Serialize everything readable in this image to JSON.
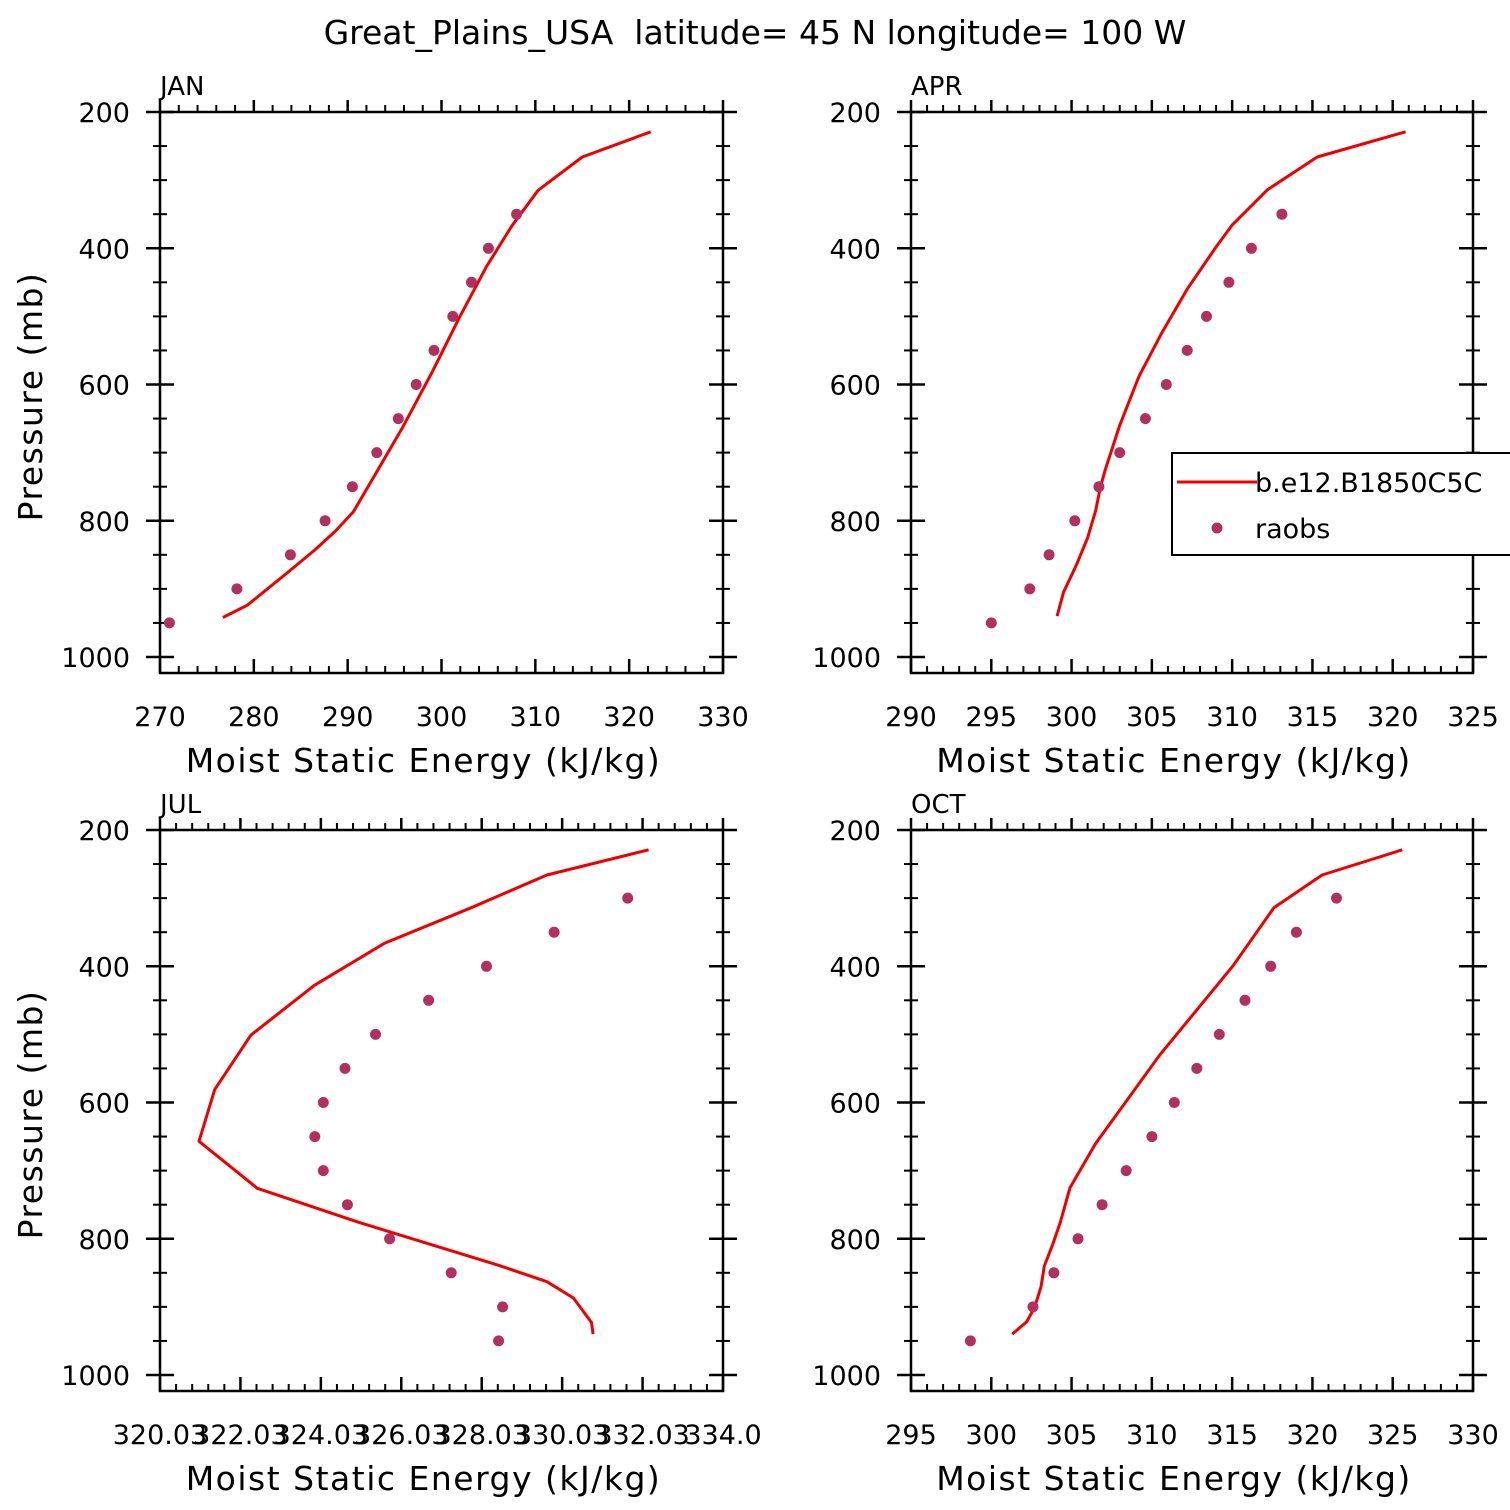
{
  "title": "Great_Plains_USA  latitude= 45 N longitude= 100 W",
  "colors": {
    "model": "#ee0000",
    "obs": "#b03060",
    "axis": "#000000"
  },
  "legend": {
    "model_label": "b.e12.B1850C5C",
    "obs_label": "raobs",
    "panel": "APR",
    "placement": "right-middle"
  },
  "chart_data": [
    {
      "type": "line",
      "panel_label": "JAN",
      "xlabel": "Moist Static Energy (kJ/kg)",
      "ylabel": "Pressure (mb)",
      "xlim": [
        270,
        330
      ],
      "ylim": [
        1000,
        200
      ],
      "xticks": [
        270,
        280,
        290,
        300,
        310,
        320,
        330
      ],
      "xtick_labels": [
        "270",
        "280",
        "290",
        "300",
        "310",
        "320",
        "330"
      ],
      "yticks": [
        200,
        400,
        600,
        800,
        1000
      ],
      "ytick_labels": [
        "200",
        "400",
        "600",
        "800",
        "1000"
      ],
      "series": [
        {
          "name": "b.e12.B1850C5C",
          "kind": "line",
          "x": [
            276.7,
            279.3,
            283.6,
            286.5,
            288.7,
            290.6,
            293.1,
            295.9,
            299.0,
            301.9,
            304.8,
            307.5,
            310.3,
            315.0,
            322.3
          ],
          "y": [
            942,
            924,
            876,
            843,
            815,
            787,
            728,
            662,
            582,
            502,
            427,
            367,
            315,
            266,
            229
          ]
        },
        {
          "name": "raobs",
          "kind": "scatter",
          "x": [
            271.0,
            278.2,
            283.9,
            287.6,
            290.5,
            293.1,
            295.4,
            297.3,
            299.2,
            301.2,
            303.2,
            305.0,
            308.0
          ],
          "y": [
            950,
            900,
            850,
            800,
            750,
            700,
            650,
            600,
            550,
            500,
            450,
            400,
            350
          ]
        }
      ]
    },
    {
      "type": "line",
      "panel_label": "APR",
      "xlabel": "Moist Static Energy (kJ/kg)",
      "ylabel": "",
      "xlim": [
        290,
        325
      ],
      "ylim": [
        1000,
        200
      ],
      "xticks": [
        290,
        295,
        300,
        305,
        310,
        315,
        320,
        325
      ],
      "xtick_labels": [
        "290",
        "295",
        "300",
        "305",
        "310",
        "315",
        "320",
        "325"
      ],
      "yticks": [
        200,
        400,
        600,
        800,
        1000
      ],
      "ytick_labels": [
        "200",
        "400",
        "600",
        "800",
        "1000"
      ],
      "series": [
        {
          "name": "b.e12.B1850C5C",
          "kind": "line",
          "x": [
            299.1,
            299.5,
            300.3,
            301.0,
            301.5,
            301.8,
            302.1,
            303.0,
            304.2,
            305.6,
            307.2,
            309.0,
            310.0,
            312.2,
            315.3,
            320.8
          ],
          "y": [
            940,
            905,
            865,
            825,
            785,
            750,
            725,
            660,
            588,
            525,
            460,
            398,
            366,
            314,
            266,
            229
          ]
        },
        {
          "name": "raobs",
          "kind": "scatter",
          "x": [
            295.0,
            297.4,
            298.6,
            300.2,
            301.7,
            303.0,
            304.6,
            305.9,
            307.2,
            308.4,
            309.8,
            311.2,
            313.1
          ],
          "y": [
            950,
            900,
            850,
            800,
            750,
            700,
            650,
            600,
            550,
            500,
            450,
            400,
            350
          ]
        }
      ]
    },
    {
      "type": "line",
      "panel_label": "JUL",
      "xlabel": "Moist Static Energy (kJ/kg)",
      "ylabel": "Pressure (mb)",
      "xlim": [
        320.03,
        334.03
      ],
      "ylim": [
        1000,
        200
      ],
      "xticks": [
        320.03,
        322.03,
        324.03,
        326.03,
        328.03,
        330.03,
        332.03,
        334.03
      ],
      "xtick_labels": [
        "320.03",
        "322.03",
        "324.03",
        "326.03",
        "328.03",
        "330.03",
        "332.03",
        "334.0"
      ],
      "yticks": [
        200,
        400,
        600,
        800,
        1000
      ],
      "ytick_labels": [
        "200",
        "400",
        "600",
        "800",
        "1000"
      ],
      "series": [
        {
          "name": "b.e12.B1850C5C",
          "kind": "line",
          "x": [
            330.8,
            330.76,
            330.31,
            329.65,
            328.45,
            324.98,
            322.45,
            321.0,
            321.39,
            322.29,
            323.87,
            325.62,
            327.77,
            329.65,
            332.18
          ],
          "y": [
            940,
            923,
            887,
            863,
            839,
            776,
            726,
            657,
            581,
            501,
            428,
            366,
            314,
            266,
            229
          ]
        },
        {
          "name": "raobs",
          "kind": "scatter",
          "x": [
            328.45,
            328.55,
            327.27,
            325.74,
            324.69,
            324.09,
            323.88,
            324.09,
            324.63,
            325.39,
            326.71,
            328.15,
            329.83,
            331.66
          ],
          "y": [
            950,
            900,
            850,
            800,
            750,
            700,
            650,
            600,
            550,
            500,
            450,
            400,
            350,
            300
          ]
        }
      ]
    },
    {
      "type": "line",
      "panel_label": "OCT",
      "xlabel": "Moist Static Energy (kJ/kg)",
      "ylabel": "",
      "xlim": [
        295,
        330
      ],
      "ylim": [
        1000,
        200
      ],
      "xticks": [
        295,
        300,
        305,
        310,
        315,
        320,
        325,
        330
      ],
      "xtick_labels": [
        "295",
        "300",
        "305",
        "310",
        "315",
        "320",
        "325",
        "330"
      ],
      "yticks": [
        200,
        400,
        600,
        800,
        1000
      ],
      "ytick_labels": [
        "200",
        "400",
        "600",
        "800",
        "1000"
      ],
      "series": [
        {
          "name": "b.e12.B1850C5C",
          "kind": "line",
          "x": [
            301.3,
            302.2,
            302.7,
            303.1,
            303.3,
            303.8,
            304.3,
            304.9,
            306.5,
            308.5,
            310.5,
            312.8,
            315.1,
            317.6,
            320.6,
            325.6
          ],
          "y": [
            940,
            922,
            901,
            870,
            840,
            810,
            776,
            725,
            660,
            595,
            530,
            464,
            398,
            314,
            266,
            229
          ]
        },
        {
          "name": "raobs",
          "kind": "scatter",
          "x": [
            298.7,
            302.6,
            303.9,
            305.4,
            306.9,
            308.4,
            310.0,
            311.4,
            312.8,
            314.2,
            315.8,
            317.4,
            319.0,
            321.5
          ],
          "y": [
            950,
            900,
            850,
            800,
            750,
            700,
            650,
            600,
            550,
            500,
            450,
            400,
            350,
            300
          ]
        }
      ]
    }
  ]
}
